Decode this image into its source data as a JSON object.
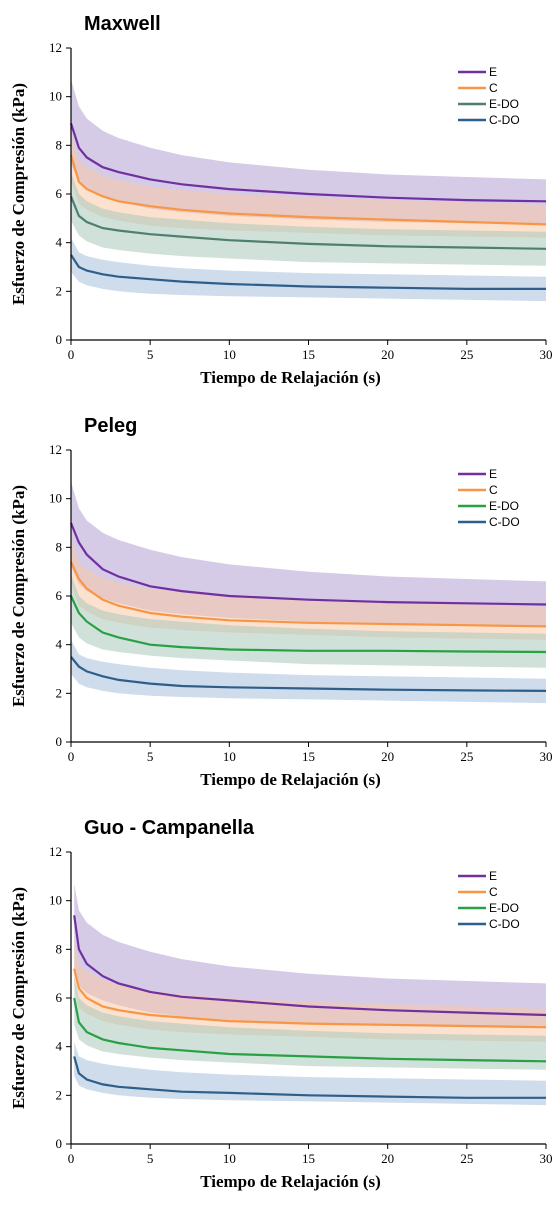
{
  "chart_data": [
    {
      "type": "line",
      "title": "Maxwell",
      "xlabel": "Tiempo de Relajación (s)",
      "ylabel": "Esfuerzo de Compresión (kPa)",
      "xlim": [
        0,
        30
      ],
      "ylim": [
        0,
        12
      ],
      "xticks": [
        "0",
        "5",
        "10",
        "15",
        "20",
        "25",
        "30"
      ],
      "yticks": [
        "0",
        "2",
        "4",
        "6",
        "8",
        "10",
        "12"
      ],
      "legend_position": "top-right",
      "series": [
        {
          "name": "E",
          "color": "#7030a0",
          "band_color": "#b4a0d2",
          "x": [
            0,
            0.5,
            1,
            2,
            3,
            5,
            7,
            10,
            15,
            20,
            25,
            30
          ],
          "y": [
            8.9,
            7.9,
            7.5,
            7.1,
            6.9,
            6.6,
            6.4,
            6.2,
            6.0,
            5.85,
            5.75,
            5.7
          ],
          "upper": [
            10.7,
            9.6,
            9.1,
            8.6,
            8.3,
            7.9,
            7.6,
            7.3,
            7.0,
            6.8,
            6.7,
            6.6
          ],
          "lower": [
            7.2,
            6.5,
            6.2,
            5.9,
            5.7,
            5.4,
            5.25,
            5.1,
            4.95,
            4.85,
            4.8,
            4.75
          ]
        },
        {
          "name": "C",
          "color": "#f79646",
          "band_color": "#f9c9a5",
          "x": [
            0,
            0.5,
            1,
            2,
            3,
            5,
            7,
            10,
            15,
            20,
            25,
            30
          ],
          "y": [
            7.6,
            6.5,
            6.2,
            5.9,
            5.7,
            5.5,
            5.35,
            5.2,
            5.05,
            4.95,
            4.85,
            4.75
          ],
          "upper": [
            8.4,
            7.4,
            7.1,
            6.75,
            6.55,
            6.3,
            6.15,
            6.0,
            5.85,
            5.75,
            5.65,
            5.55
          ],
          "lower": [
            6.5,
            5.6,
            5.35,
            5.05,
            4.9,
            4.7,
            4.6,
            4.5,
            4.4,
            4.3,
            4.25,
            4.2
          ]
        },
        {
          "name": "E-DO",
          "color": "#4f7f6d",
          "band_color": "#aac8bc",
          "x": [
            0,
            0.5,
            1,
            2,
            3,
            5,
            7,
            10,
            15,
            20,
            25,
            30
          ],
          "y": [
            5.9,
            5.1,
            4.85,
            4.6,
            4.5,
            4.35,
            4.25,
            4.1,
            3.95,
            3.85,
            3.8,
            3.75
          ],
          "upper": [
            6.9,
            6.0,
            5.7,
            5.4,
            5.25,
            5.05,
            4.95,
            4.8,
            4.65,
            4.55,
            4.5,
            4.45
          ],
          "lower": [
            4.9,
            4.3,
            4.05,
            3.8,
            3.7,
            3.55,
            3.45,
            3.35,
            3.2,
            3.15,
            3.1,
            3.05
          ]
        },
        {
          "name": "C-DO",
          "color": "#2e5f8a",
          "band_color": "#a7bfdc",
          "x": [
            0,
            0.5,
            1,
            2,
            3,
            5,
            7,
            10,
            15,
            20,
            25,
            30
          ],
          "y": [
            3.5,
            3.0,
            2.85,
            2.7,
            2.6,
            2.5,
            2.4,
            2.3,
            2.2,
            2.15,
            2.1,
            2.1
          ],
          "upper": [
            4.2,
            3.6,
            3.45,
            3.3,
            3.2,
            3.05,
            2.95,
            2.85,
            2.75,
            2.7,
            2.65,
            2.6
          ],
          "lower": [
            2.8,
            2.4,
            2.25,
            2.1,
            2.0,
            1.9,
            1.85,
            1.8,
            1.75,
            1.7,
            1.65,
            1.6
          ]
        }
      ]
    },
    {
      "type": "line",
      "title": "Peleg",
      "xlabel": "Tiempo de Relajación (s)",
      "ylabel": "Esfuerzo de Compresión (kPa)",
      "xlim": [
        0,
        30
      ],
      "ylim": [
        0,
        12
      ],
      "xticks": [
        "0",
        "5",
        "10",
        "15",
        "20",
        "25",
        "30"
      ],
      "yticks": [
        "0",
        "2",
        "4",
        "6",
        "8",
        "10",
        "12"
      ],
      "legend_position": "top-right",
      "series": [
        {
          "name": "E",
          "color": "#7030a0",
          "band_color": "#b4a0d2",
          "x": [
            0,
            0.5,
            1,
            2,
            3,
            5,
            7,
            10,
            15,
            20,
            25,
            30
          ],
          "y": [
            9.0,
            8.2,
            7.7,
            7.1,
            6.8,
            6.4,
            6.2,
            6.0,
            5.85,
            5.75,
            5.7,
            5.65
          ],
          "upper": [
            10.7,
            9.6,
            9.1,
            8.6,
            8.3,
            7.9,
            7.6,
            7.3,
            7.0,
            6.8,
            6.7,
            6.6
          ],
          "lower": [
            7.2,
            6.5,
            6.2,
            5.9,
            5.7,
            5.4,
            5.25,
            5.1,
            4.95,
            4.85,
            4.8,
            4.75
          ]
        },
        {
          "name": "C",
          "color": "#f79646",
          "band_color": "#f9c9a5",
          "x": [
            0,
            0.5,
            1,
            2,
            3,
            5,
            7,
            10,
            15,
            20,
            25,
            30
          ],
          "y": [
            7.4,
            6.7,
            6.3,
            5.85,
            5.6,
            5.3,
            5.15,
            5.0,
            4.9,
            4.85,
            4.8,
            4.75
          ],
          "upper": [
            8.4,
            7.4,
            7.1,
            6.75,
            6.55,
            6.3,
            6.15,
            6.0,
            5.85,
            5.75,
            5.65,
            5.55
          ],
          "lower": [
            6.5,
            5.6,
            5.35,
            5.05,
            4.9,
            4.7,
            4.6,
            4.5,
            4.4,
            4.3,
            4.25,
            4.2
          ]
        },
        {
          "name": "E-DO",
          "color": "#28a044",
          "band_color": "#aac8bc",
          "x": [
            0,
            0.5,
            1,
            2,
            3,
            5,
            7,
            10,
            15,
            20,
            25,
            30
          ],
          "y": [
            6.0,
            5.3,
            4.95,
            4.5,
            4.3,
            4.0,
            3.9,
            3.8,
            3.75,
            3.75,
            3.72,
            3.7
          ],
          "upper": [
            6.9,
            6.0,
            5.7,
            5.4,
            5.25,
            5.05,
            4.95,
            4.8,
            4.65,
            4.55,
            4.5,
            4.45
          ],
          "lower": [
            4.9,
            4.3,
            4.05,
            3.8,
            3.7,
            3.55,
            3.45,
            3.35,
            3.2,
            3.15,
            3.1,
            3.05
          ]
        },
        {
          "name": "C-DO",
          "color": "#2e5f8a",
          "band_color": "#a7bfdc",
          "x": [
            0,
            0.5,
            1,
            2,
            3,
            5,
            7,
            10,
            15,
            20,
            25,
            30
          ],
          "y": [
            3.5,
            3.1,
            2.9,
            2.7,
            2.55,
            2.4,
            2.3,
            2.25,
            2.2,
            2.15,
            2.12,
            2.1
          ],
          "upper": [
            4.2,
            3.6,
            3.45,
            3.3,
            3.2,
            3.05,
            2.95,
            2.85,
            2.75,
            2.7,
            2.65,
            2.6
          ],
          "lower": [
            2.8,
            2.4,
            2.25,
            2.1,
            2.0,
            1.9,
            1.85,
            1.8,
            1.75,
            1.7,
            1.65,
            1.6
          ]
        }
      ]
    },
    {
      "type": "line",
      "title": "Guo - Campanella",
      "xlabel": "Tiempo de Relajación (s)",
      "ylabel": "Esfuerzo de Compresión (kPa)",
      "xlim": [
        0,
        30
      ],
      "ylim": [
        0,
        12
      ],
      "xticks": [
        "0",
        "5",
        "10",
        "15",
        "20",
        "25",
        "30"
      ],
      "yticks": [
        "0",
        "2",
        "4",
        "6",
        "8",
        "10",
        "12"
      ],
      "legend_position": "top-right",
      "series": [
        {
          "name": "E",
          "color": "#7030a0",
          "band_color": "#b4a0d2",
          "x": [
            0.2,
            0.5,
            1,
            2,
            3,
            5,
            7,
            10,
            15,
            20,
            25,
            30
          ],
          "y": [
            9.4,
            8.0,
            7.4,
            6.9,
            6.6,
            6.25,
            6.05,
            5.9,
            5.65,
            5.5,
            5.4,
            5.3
          ],
          "upper": [
            10.7,
            9.6,
            9.1,
            8.6,
            8.3,
            7.9,
            7.6,
            7.3,
            7.0,
            6.8,
            6.7,
            6.6
          ],
          "lower": [
            7.2,
            6.5,
            6.2,
            5.9,
            5.7,
            5.4,
            5.25,
            5.1,
            4.95,
            4.85,
            4.8,
            4.75
          ]
        },
        {
          "name": "C",
          "color": "#f79646",
          "band_color": "#f9c9a5",
          "x": [
            0.2,
            0.5,
            1,
            2,
            3,
            5,
            7,
            10,
            15,
            20,
            25,
            30
          ],
          "y": [
            7.2,
            6.4,
            6.0,
            5.65,
            5.5,
            5.3,
            5.2,
            5.05,
            4.95,
            4.9,
            4.85,
            4.8
          ],
          "upper": [
            8.4,
            7.4,
            7.1,
            6.75,
            6.55,
            6.3,
            6.15,
            6.0,
            5.85,
            5.75,
            5.65,
            5.55
          ],
          "lower": [
            6.5,
            5.6,
            5.35,
            5.05,
            4.9,
            4.7,
            4.6,
            4.5,
            4.4,
            4.3,
            4.25,
            4.2
          ]
        },
        {
          "name": "E-DO",
          "color": "#28a044",
          "band_color": "#aac8bc",
          "x": [
            0.2,
            0.5,
            1,
            2,
            3,
            5,
            7,
            10,
            15,
            20,
            25,
            30
          ],
          "y": [
            6.0,
            5.0,
            4.6,
            4.3,
            4.15,
            3.95,
            3.85,
            3.7,
            3.6,
            3.5,
            3.45,
            3.4
          ],
          "upper": [
            6.9,
            6.0,
            5.7,
            5.4,
            5.25,
            5.05,
            4.95,
            4.8,
            4.65,
            4.55,
            4.5,
            4.45
          ],
          "lower": [
            4.9,
            4.3,
            4.05,
            3.8,
            3.7,
            3.55,
            3.45,
            3.35,
            3.2,
            3.15,
            3.1,
            3.05
          ]
        },
        {
          "name": "C-DO",
          "color": "#2e5f8a",
          "band_color": "#a7bfdc",
          "x": [
            0.2,
            0.5,
            1,
            2,
            3,
            5,
            7,
            10,
            15,
            20,
            25,
            30
          ],
          "y": [
            3.6,
            2.9,
            2.65,
            2.45,
            2.35,
            2.25,
            2.15,
            2.1,
            2.0,
            1.95,
            1.9,
            1.9
          ],
          "upper": [
            4.2,
            3.6,
            3.45,
            3.3,
            3.2,
            3.05,
            2.95,
            2.85,
            2.75,
            2.7,
            2.65,
            2.6
          ],
          "lower": [
            2.8,
            2.4,
            2.25,
            2.1,
            2.0,
            1.9,
            1.85,
            1.8,
            1.75,
            1.7,
            1.65,
            1.6
          ]
        }
      ]
    }
  ]
}
